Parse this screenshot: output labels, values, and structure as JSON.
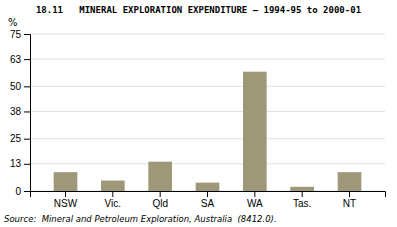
{
  "chart_data": {
    "type": "bar",
    "title": "18.11   MINERAL EXPLORATION EXPENDITURE — 1994-95 to 2000-01",
    "categories": [
      "NSW",
      "Vic.",
      "Qld",
      "SA",
      "WA",
      "Tas.",
      "NT"
    ],
    "values": [
      9.0,
      5.0,
      14.0,
      4.0,
      57.0,
      2.0,
      9.0
    ],
    "color": "#9e9878",
    "ylim": [
      0,
      75
    ],
    "yticks": [
      0,
      13,
      25,
      38,
      50,
      63,
      75
    ],
    "ylabel": "%",
    "source": "Source:  Mineral and Petroleum Exploration, Australia  (8412.0).",
    "grid": true
  }
}
